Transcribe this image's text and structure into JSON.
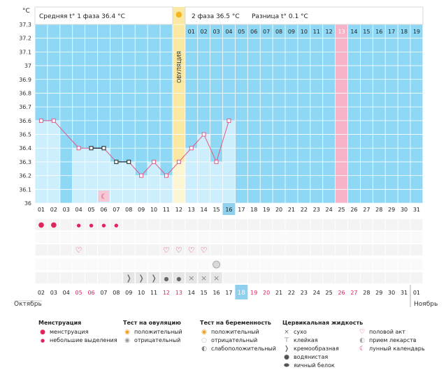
{
  "header": {
    "unit": "°C",
    "phase1_label": "Средняя t° 1 фаза",
    "phase1_value": "36.4 °C",
    "phase2_label": "2 фаза",
    "phase2_value": "36.5 °C",
    "diff_label": "Разница t°",
    "diff_value": "0.1 °C"
  },
  "ovulation_label": "ОВУЛЯЦИЯ",
  "month_start": "Октябрь",
  "month_end": "Ноябрь",
  "colors": {
    "sky": "#8ed8f5",
    "cell_fill": "#cdeefc",
    "ovulation": "#fbe9a3",
    "ovulation_light": "#fdf6d4",
    "highlight": "#f7b3c7",
    "line": "#e05a88",
    "grid": "#ffffff",
    "today": "#8ed0ee",
    "red": "#e0245e"
  },
  "chart_data": {
    "type": "line",
    "title": "Базальная температура",
    "ylabel": "°C",
    "ylim": [
      36.0,
      37.3
    ],
    "yticks": [
      "37.3",
      "37.2",
      "37.1",
      "37",
      "36.9",
      "36.8",
      "36.7",
      "36.6",
      "36.5",
      "36.4",
      "36.3",
      "36.2",
      "36.1",
      "36"
    ],
    "top_days": [
      "",
      "",
      "",
      "",
      "",
      "",
      "",
      "",
      "",
      "",
      "",
      "",
      "01",
      "02",
      "03",
      "04",
      "05",
      "06",
      "07",
      "08",
      "09",
      "10",
      "11",
      "12",
      "13",
      "14",
      "15",
      "16",
      "17",
      "18",
      "19"
    ],
    "cycle_days": [
      "01",
      "02",
      "03",
      "04",
      "05",
      "06",
      "07",
      "08",
      "09",
      "10",
      "11",
      "12",
      "13",
      "14",
      "15",
      "16",
      "17",
      "18",
      "19",
      "20",
      "21",
      "22",
      "23",
      "24",
      "25",
      "26",
      "27",
      "28",
      "29",
      "30",
      "31"
    ],
    "dates": [
      "02",
      "03",
      "04",
      "05",
      "06",
      "07",
      "08",
      "09",
      "10",
      "11",
      "12",
      "13",
      "14",
      "15",
      "16",
      "17",
      "18",
      "19",
      "20",
      "21",
      "22",
      "23",
      "24",
      "25",
      "26",
      "27",
      "28",
      "29",
      "30",
      "31",
      "01"
    ],
    "red_dates": [
      3,
      4,
      10,
      11,
      17,
      18,
      24,
      25
    ],
    "temperatures": [
      36.6,
      36.6,
      null,
      36.4,
      36.4,
      36.4,
      36.3,
      36.3,
      36.2,
      36.3,
      36.2,
      36.3,
      36.4,
      36.5,
      36.3,
      36.6
    ],
    "marker_style": [
      "pink",
      "pink",
      null,
      "pink",
      "black",
      "black",
      "black",
      "black",
      "pink",
      "pink",
      "pink",
      "pink",
      "pink",
      "pink",
      "pink",
      "pink"
    ],
    "dashed_segments": [
      [
        1,
        3
      ]
    ],
    "ovulation_day": 12,
    "highlight_day": 25,
    "today_day": 16,
    "menstruation": [
      "heavy",
      "heavy",
      null,
      "light",
      "light",
      "light",
      "light"
    ],
    "intercourse_days": [
      4,
      11,
      12,
      13,
      14
    ],
    "medication_days": [
      15
    ],
    "lunar_calendar_days": [
      6
    ],
    "cervical": [
      null,
      null,
      null,
      null,
      null,
      null,
      null,
      "creamy",
      "creamy",
      "creamy",
      "watery",
      "watery",
      "dry",
      "dry",
      "dry"
    ]
  },
  "legend": {
    "menstruation": {
      "title": "Менструация",
      "items": [
        "менструация",
        "небольшие выделения"
      ]
    },
    "ovulation_test": {
      "title": "Тест на овуляцию",
      "items": [
        "положительный",
        "отрицательный"
      ]
    },
    "pregnancy_test": {
      "title": "Тест на беременность",
      "items": [
        "положительный",
        "отрицательный",
        "слабоположительный"
      ]
    },
    "cervical": {
      "title": "Цервикальная жидкость",
      "items": [
        "сухо",
        "клейкая",
        "кремообразная",
        "водянистая",
        "яичный белок"
      ]
    },
    "other": {
      "items": [
        "половой акт",
        "прием лекарств",
        "лунный календарь"
      ]
    }
  }
}
